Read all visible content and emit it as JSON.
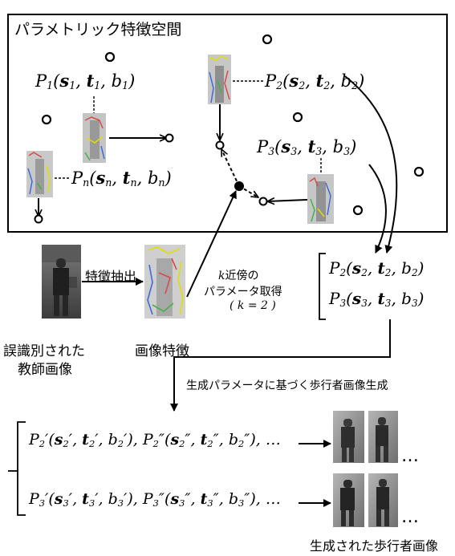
{
  "space_label": "パラメトリック特徴空間",
  "params": {
    "p1": {
      "P": "P",
      "i": "1",
      "s": "s",
      "t": "t",
      "b": "b"
    },
    "p2": {
      "P": "P",
      "i": "2",
      "s": "s",
      "t": "t",
      "b": "b"
    },
    "p3": {
      "P": "P",
      "i": "3",
      "s": "s",
      "t": "t",
      "b": "b"
    },
    "pn": {
      "P": "P",
      "i": "n",
      "s": "s",
      "t": "t",
      "b": "b"
    }
  },
  "extract_label": "特徴抽出",
  "knn_label_line1": "近傍の",
  "knn_k": "k",
  "knn_label_line2": "パラメータ取得",
  "knn_label_line3": "( k = 2 )",
  "misclassified_line1": "誤識別された",
  "misclassified_line2": "教師画像",
  "image_feature_label": "画像特徴",
  "generate_label": "生成パラメータに基づく歩行者画像生成",
  "generated_label": "生成された歩行者画像",
  "ellipsis": "…",
  "row_ellipsis": "…",
  "prime": "′",
  "dprime": "″",
  "colors": {
    "frame": "#000000",
    "background": "#ffffff"
  }
}
